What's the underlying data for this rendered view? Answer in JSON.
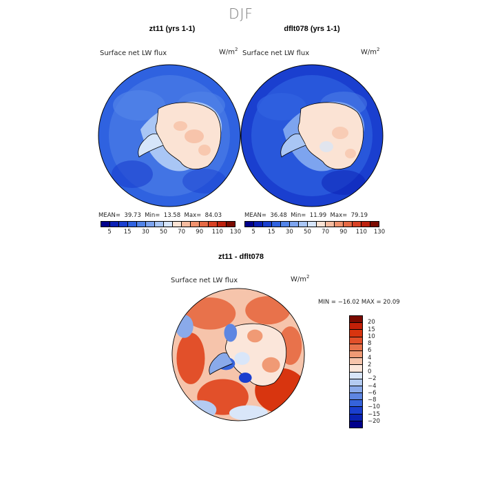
{
  "season": "DJF",
  "panels": [
    {
      "title": "zt11 (yrs 1-1)",
      "variable": "Surface net LW flux",
      "units_base": "W/m",
      "units_exp": "2",
      "stats": {
        "mean_label": "MEAN=",
        "mean": "39.73",
        "min_label": "Min=",
        "min": "13.58",
        "max_label": "Max=",
        "max": "84.03"
      }
    },
    {
      "title": "dflt078 (yrs 1-1)",
      "variable": "Surface net LW flux",
      "units_base": "W/m",
      "units_exp": "2",
      "stats": {
        "mean_label": "MEAN=",
        "mean": "36.48",
        "min_label": "Min=",
        "min": "11.99",
        "max_label": "Max=",
        "max": "79.19"
      }
    }
  ],
  "diff_panel": {
    "title": "zt11 - dflt078",
    "variable": "Surface net LW flux",
    "units_base": "W/m",
    "units_exp": "2",
    "minmax_text": "MIN = −16.02  MAX =  20.09"
  },
  "colors": {
    "seq": [
      "#00008b",
      "#0a1fb4",
      "#1a3fcf",
      "#2f62e0",
      "#5284e8",
      "#7da4ef",
      "#a9c6f5",
      "#d6e5fa",
      "#fbe3d4",
      "#f6bca0",
      "#f0926e",
      "#e66a45",
      "#d84124",
      "#bd210e",
      "#7a0a00"
    ],
    "div": [
      "#7a0a00",
      "#c32008",
      "#d8350f",
      "#e2502a",
      "#e8724b",
      "#f09a75",
      "#f6c4ab",
      "#fbe6da",
      "#d9e6f9",
      "#b4cbf1",
      "#8aaaea",
      "#5e86e2",
      "#3563db",
      "#1a3fcf",
      "#0a22b3",
      "#00008b"
    ]
  },
  "chart_data": [
    {
      "type": "heatmap",
      "projection": "south polar stereographic",
      "title": "zt11 (yrs 1-1)",
      "variable": "Surface net LW flux",
      "units": "W/m^2",
      "mean": 39.73,
      "min": 13.58,
      "max": 84.03,
      "colorbar": {
        "orientation": "horizontal",
        "tick_labels": [
          "5",
          "15",
          "30",
          "50",
          "70",
          "90",
          "110",
          "130"
        ]
      }
    },
    {
      "type": "heatmap",
      "projection": "south polar stereographic",
      "title": "dflt078 (yrs 1-1)",
      "variable": "Surface net LW flux",
      "units": "W/m^2",
      "mean": 36.48,
      "min": 11.99,
      "max": 79.19,
      "colorbar": {
        "orientation": "horizontal",
        "tick_labels": [
          "5",
          "15",
          "30",
          "50",
          "70",
          "90",
          "110",
          "130"
        ]
      }
    },
    {
      "type": "heatmap",
      "projection": "south polar stereographic",
      "title": "zt11 - dflt078",
      "variable": "Surface net LW flux",
      "units": "W/m^2",
      "min": -16.02,
      "max": 20.09,
      "colorbar": {
        "orientation": "vertical",
        "tick_labels": [
          "20",
          "15",
          "10",
          "8",
          "6",
          "4",
          "2",
          "0",
          "−2",
          "−4",
          "−6",
          "−8",
          "−10",
          "−15",
          "−20"
        ]
      }
    }
  ]
}
